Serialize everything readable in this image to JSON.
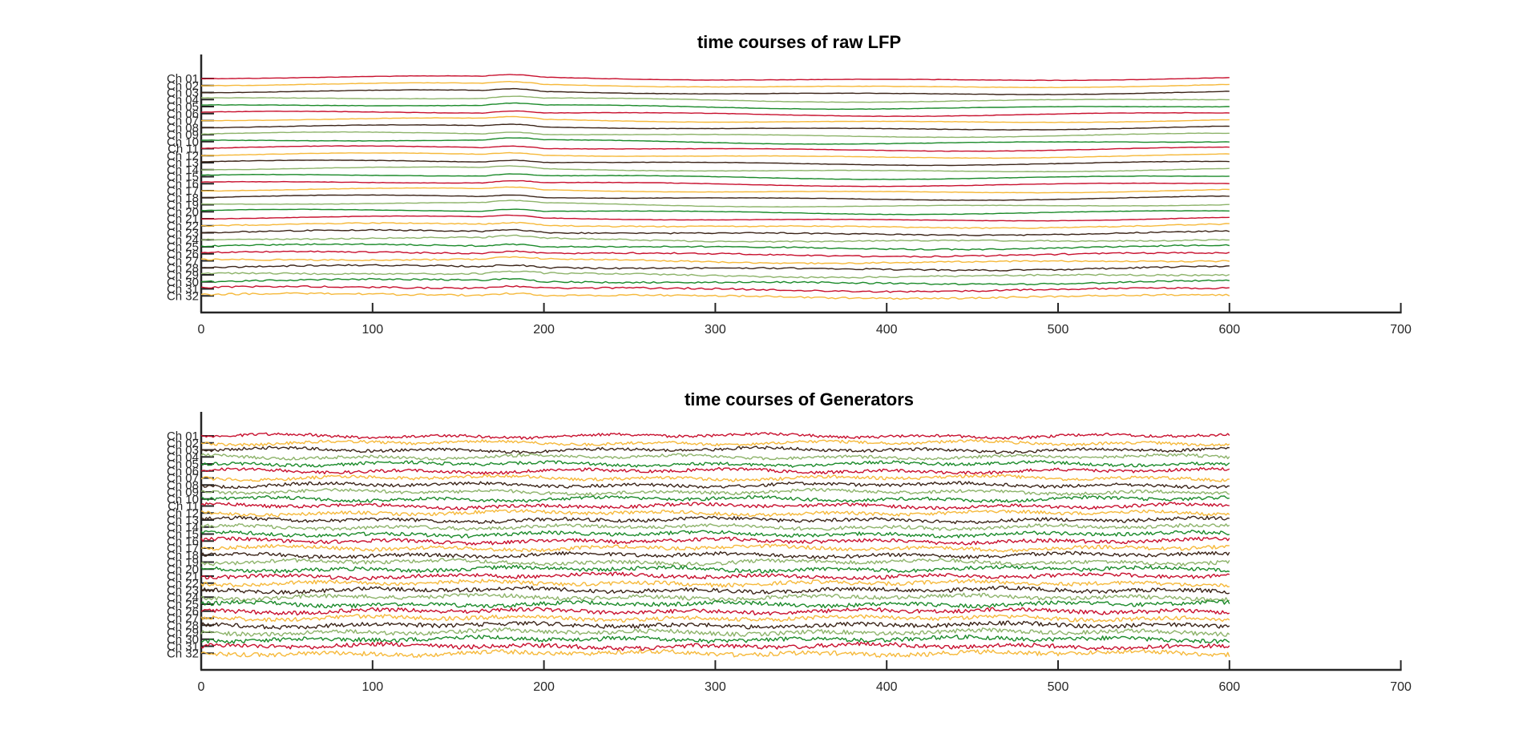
{
  "palette": [
    "#c8102e",
    "#f6b93b",
    "#3b2418",
    "#8db36a",
    "#1b8a2a"
  ],
  "chart_data": [
    {
      "type": "line",
      "title": "time courses of raw LFP",
      "xlabel": "",
      "ylabel": "",
      "xlim": [
        0,
        700
      ],
      "xticks": [
        "0",
        "100",
        "200",
        "300",
        "400",
        "500",
        "600",
        "700"
      ],
      "x_range": [
        0,
        600
      ],
      "channels": [
        "Ch 01",
        "Ch 02",
        "Ch 03",
        "Ch 04",
        "Ch 05",
        "Ch 06",
        "Ch 07",
        "Ch 08",
        "Ch 09",
        "Ch 10",
        "Ch 11",
        "Ch 12",
        "Ch 13",
        "Ch 14",
        "Ch 15",
        "Ch 16",
        "Ch 17",
        "Ch 18",
        "Ch 19",
        "Ch 20",
        "Ch 21",
        "Ch 22",
        "Ch 23",
        "Ch 24",
        "Ch 25",
        "Ch 26",
        "Ch 27",
        "Ch 28",
        "Ch 29",
        "Ch 30",
        "Ch 31",
        "Ch 32"
      ],
      "signal": "smooth",
      "grid": false
    },
    {
      "type": "line",
      "title": "time courses of Generators",
      "xlabel": "",
      "ylabel": "",
      "xlim": [
        0,
        700
      ],
      "xticks": [
        "0",
        "100",
        "200",
        "300",
        "400",
        "500",
        "600",
        "700"
      ],
      "x_range": [
        0,
        600
      ],
      "channels": [
        "Ch 01",
        "Ch 02",
        "Ch 03",
        "Ch 04",
        "Ch 05",
        "Ch 06",
        "Ch 07",
        "Ch 08",
        "Ch 09",
        "Ch 10",
        "Ch 11",
        "Ch 12",
        "Ch 13",
        "Ch 14",
        "Ch 15",
        "Ch 16",
        "Ch 17",
        "Ch 18",
        "Ch 19",
        "Ch 20",
        "Ch 21",
        "Ch 22",
        "Ch 23",
        "Ch 24",
        "Ch 25",
        "Ch 26",
        "Ch 27",
        "Ch 28",
        "Ch 29",
        "Ch 30",
        "Ch 31",
        "Ch 32"
      ],
      "signal": "noisy",
      "grid": false
    }
  ]
}
